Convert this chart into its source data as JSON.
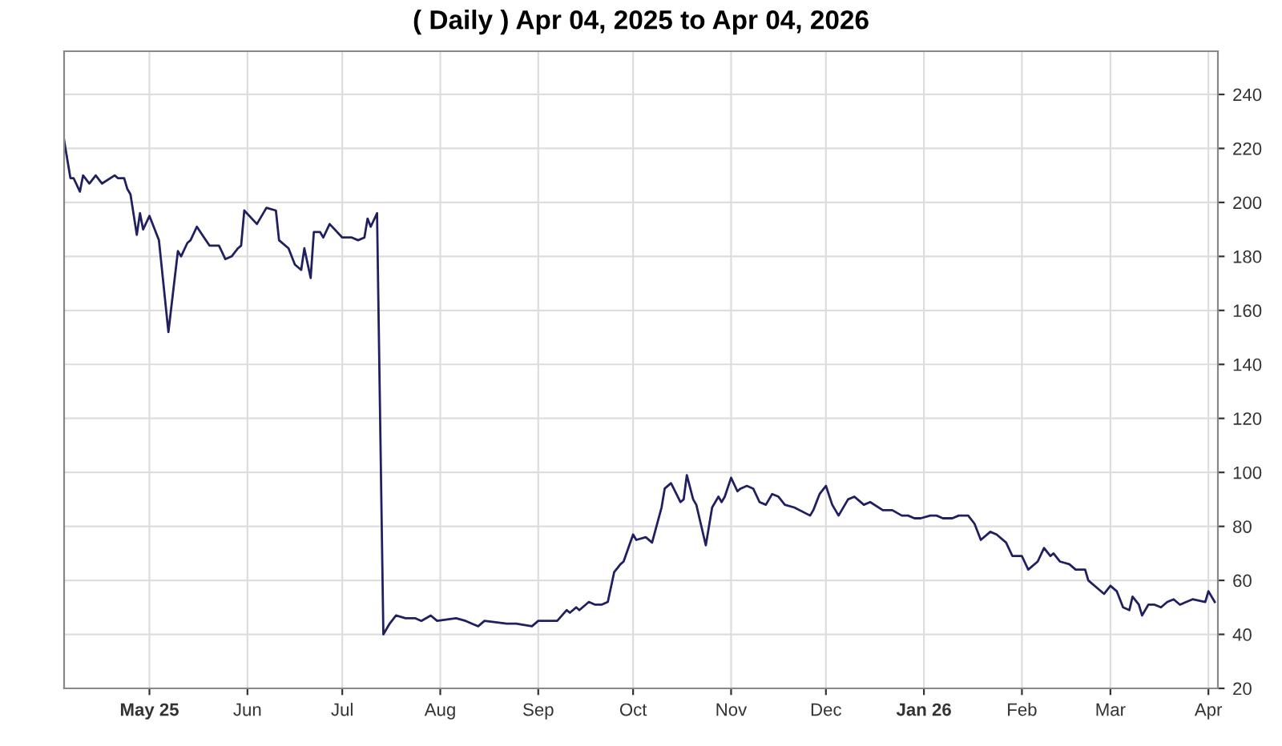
{
  "chart_data": {
    "type": "line",
    "title": "( Daily ) Apr 04, 2025 to Apr 04, 2026",
    "x": [
      "2025-04-04",
      "2025-04-06",
      "2025-04-07",
      "2025-04-09",
      "2025-04-10",
      "2025-04-12",
      "2025-04-14",
      "2025-04-16",
      "2025-04-20",
      "2025-04-21",
      "2025-04-23",
      "2025-04-24",
      "2025-04-25",
      "2025-04-27",
      "2025-04-28",
      "2025-04-29",
      "2025-05-01",
      "2025-05-04",
      "2025-05-07",
      "2025-05-10",
      "2025-05-11",
      "2025-05-13",
      "2025-05-14",
      "2025-05-16",
      "2025-05-20",
      "2025-05-23",
      "2025-05-25",
      "2025-05-27",
      "2025-05-29",
      "2025-05-30",
      "2025-05-31",
      "2025-06-04",
      "2025-06-07",
      "2025-06-10",
      "2025-06-11",
      "2025-06-14",
      "2025-06-16",
      "2025-06-18",
      "2025-06-19",
      "2025-06-21",
      "2025-06-22",
      "2025-06-24",
      "2025-06-25",
      "2025-06-27",
      "2025-07-01",
      "2025-07-04",
      "2025-07-06",
      "2025-07-08",
      "2025-07-09",
      "2025-07-10",
      "2025-07-12",
      "2025-07-14",
      "2025-07-16",
      "2025-07-18",
      "2025-07-21",
      "2025-07-22",
      "2025-07-24",
      "2025-07-26",
      "2025-07-29",
      "2025-07-31",
      "2025-08-06",
      "2025-08-09",
      "2025-08-13",
      "2025-08-15",
      "2025-08-22",
      "2025-08-25",
      "2025-08-30",
      "2025-09-01",
      "2025-09-07",
      "2025-09-10",
      "2025-09-11",
      "2025-09-13",
      "2025-09-14",
      "2025-09-17",
      "2025-09-19",
      "2025-09-21",
      "2025-09-23",
      "2025-09-25",
      "2025-09-27",
      "2025-09-28",
      "2025-10-01",
      "2025-10-02",
      "2025-10-05",
      "2025-10-07",
      "2025-10-10",
      "2025-10-11",
      "2025-10-13",
      "2025-10-16",
      "2025-10-17",
      "2025-10-18",
      "2025-10-20",
      "2025-10-21",
      "2025-10-24",
      "2025-10-26",
      "2025-10-28",
      "2025-10-29",
      "2025-10-30",
      "2025-11-01",
      "2025-11-03",
      "2025-11-04",
      "2025-11-06",
      "2025-11-08",
      "2025-11-10",
      "2025-11-12",
      "2025-11-14",
      "2025-11-16",
      "2025-11-18",
      "2025-11-21",
      "2025-11-26",
      "2025-11-27",
      "2025-11-29",
      "2025-12-01",
      "2025-12-03",
      "2025-12-05",
      "2025-12-08",
      "2025-12-10",
      "2025-12-11",
      "2025-12-13",
      "2025-12-15",
      "2025-12-19",
      "2025-12-22",
      "2025-12-25",
      "2025-12-27",
      "2025-12-29",
      "2025-12-31",
      "2026-01-03",
      "2026-01-05",
      "2026-01-07",
      "2026-01-10",
      "2026-01-12",
      "2026-01-15",
      "2026-01-17",
      "2026-01-19",
      "2026-01-22",
      "2026-01-24",
      "2026-01-27",
      "2026-01-29",
      "2026-02-01",
      "2026-02-03",
      "2026-02-06",
      "2026-02-08",
      "2026-02-10",
      "2026-02-11",
      "2026-02-13",
      "2026-02-16",
      "2026-02-18",
      "2026-02-21",
      "2026-02-22",
      "2026-02-25",
      "2026-02-27",
      "2026-03-01",
      "2026-03-03",
      "2026-03-05",
      "2026-03-07",
      "2026-03-08",
      "2026-03-10",
      "2026-03-11",
      "2026-03-13",
      "2026-03-15",
      "2026-03-17",
      "2026-03-19",
      "2026-03-21",
      "2026-03-23",
      "2026-03-25",
      "2026-03-27",
      "2026-03-31",
      "2026-04-01",
      "2026-04-03"
    ],
    "series": [
      {
        "color": "#202060",
        "values": [
          223,
          209,
          209,
          204,
          210,
          207,
          210,
          207,
          210,
          209,
          209,
          205,
          203,
          188,
          196,
          190,
          195,
          186,
          152,
          182,
          180,
          185,
          186,
          191,
          184,
          184,
          179,
          180,
          183,
          184,
          197,
          192,
          198,
          197,
          186,
          183,
          177,
          175,
          183,
          172,
          189,
          189,
          187,
          192,
          187,
          187,
          186,
          187,
          194,
          191,
          196,
          40,
          44,
          47,
          46,
          46,
          46,
          45,
          47,
          45,
          46,
          45,
          43,
          45,
          44,
          44,
          43,
          45,
          45,
          49,
          48,
          50,
          49,
          52,
          51,
          51,
          52,
          63,
          66,
          67,
          77,
          75,
          76,
          74,
          87,
          94,
          96,
          89,
          90,
          99,
          90,
          88,
          73,
          87,
          91,
          89,
          91,
          98,
          93,
          94,
          95,
          94,
          89,
          88,
          92,
          91,
          88,
          87,
          84,
          86,
          92,
          95,
          88,
          84,
          90,
          91,
          90,
          88,
          89,
          86,
          86,
          84,
          84,
          83,
          83,
          84,
          84,
          83,
          83,
          84,
          84,
          81,
          75,
          78,
          77,
          74,
          69,
          69,
          64,
          67,
          72,
          69,
          70,
          67,
          66,
          64,
          64,
          60,
          57,
          55,
          58,
          56,
          50,
          49,
          54,
          51,
          47,
          51,
          51,
          50,
          52,
          53,
          51,
          52,
          53,
          52,
          56,
          52
        ]
      }
    ],
    "xlim": [
      "2025-04-04",
      "2026-04-04"
    ],
    "xticks": [
      {
        "value": "2025-05-01",
        "label": "May 25"
      },
      {
        "value": "2025-06-01",
        "label": "Jun"
      },
      {
        "value": "2025-07-01",
        "label": "Jul"
      },
      {
        "value": "2025-08-01",
        "label": "Aug"
      },
      {
        "value": "2025-09-01",
        "label": "Sep"
      },
      {
        "value": "2025-10-01",
        "label": "Oct"
      },
      {
        "value": "2025-11-01",
        "label": "Nov"
      },
      {
        "value": "2025-12-01",
        "label": "Dec"
      },
      {
        "value": "2026-01-01",
        "label": "Jan 26"
      },
      {
        "value": "2026-02-01",
        "label": "Feb"
      },
      {
        "value": "2026-03-01",
        "label": "Mar"
      },
      {
        "value": "2026-04-01",
        "label": "Apr"
      }
    ],
    "ylim": [
      20,
      256
    ],
    "yticks": [
      20,
      40,
      60,
      80,
      100,
      120,
      140,
      160,
      180,
      200,
      220,
      240
    ],
    "grid": true,
    "marker": "none",
    "line_style": "solid"
  }
}
